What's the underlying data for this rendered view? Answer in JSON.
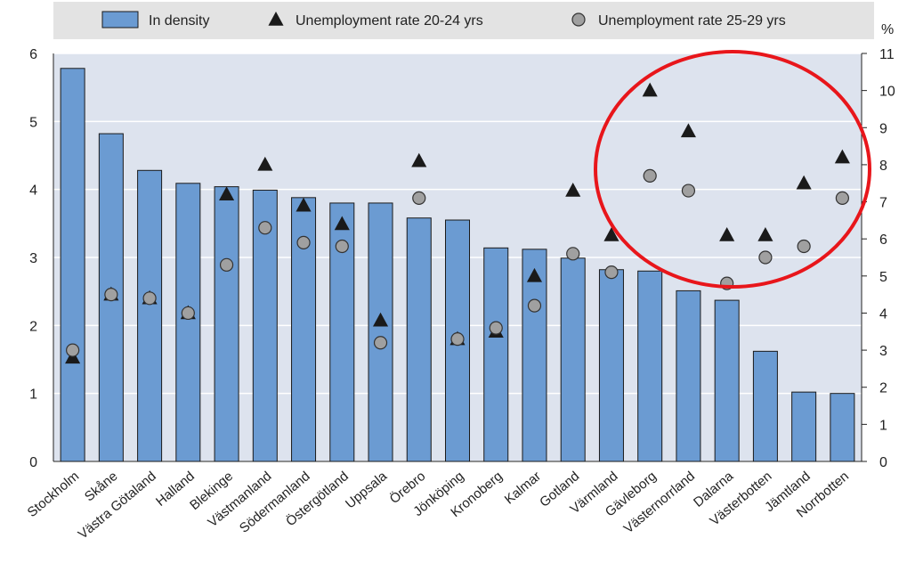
{
  "chart_data": {
    "type": "bar",
    "categories": [
      "Stockholm",
      "Skåne",
      "Västra Götaland",
      "Halland",
      "Blekinge",
      "Västmanland",
      "Södermanland",
      "Östergötland",
      "Uppsala",
      "Örebro",
      "Jönköping",
      "Kronoberg",
      "Kalmar",
      "Gotland",
      "Värmland",
      "Gävleborg",
      "Västernorrland",
      "Dalarna",
      "Västerbotten",
      "Jämtland",
      "Norrbotten"
    ],
    "series": [
      {
        "name": "In density",
        "kind": "bar",
        "axis": "left",
        "values": [
          5.78,
          4.82,
          4.28,
          4.09,
          4.04,
          3.99,
          3.88,
          3.8,
          3.8,
          3.58,
          3.55,
          3.14,
          3.12,
          2.99,
          2.82,
          2.8,
          2.51,
          2.37,
          1.62,
          1.02,
          1.0
        ]
      },
      {
        "name": "Unemployment rate 20-24 yrs",
        "kind": "triangle",
        "axis": "right",
        "values": [
          2.8,
          4.5,
          4.4,
          4.0,
          7.2,
          8.0,
          6.9,
          6.4,
          3.8,
          8.1,
          3.3,
          3.5,
          5.0,
          7.3,
          6.1,
          10.0,
          8.9,
          6.1,
          6.1,
          7.5,
          8.2
        ]
      },
      {
        "name": "Unemployment rate 25-29 yrs",
        "kind": "circle",
        "axis": "right",
        "values": [
          3.0,
          4.5,
          4.4,
          4.0,
          5.3,
          6.3,
          5.9,
          5.8,
          3.2,
          7.1,
          3.3,
          3.6,
          4.2,
          5.6,
          5.1,
          7.7,
          7.3,
          4.8,
          5.5,
          5.8,
          7.1
        ]
      }
    ],
    "y_left": {
      "min": 0,
      "max": 6,
      "ticks": [
        "0",
        "1",
        "2",
        "3",
        "4",
        "5",
        "6"
      ]
    },
    "y_right": {
      "unit": "%",
      "min": 0,
      "max": 11,
      "ticks": [
        "0",
        "1",
        "2",
        "3",
        "4",
        "5",
        "6",
        "7",
        "8",
        "9",
        "10",
        "11"
      ]
    },
    "legend_position": "top",
    "grid": true,
    "annotation": "red ellipse highlighting Gävleborg to Norrbotten"
  },
  "colors": {
    "bar_fill": "#6b9bd2",
    "bar_stroke": "#1a1a1a",
    "marker_triangle": "#1a1a1a",
    "marker_circle": "#a0a0a0",
    "plot_background": "#dde3ee",
    "grid": "#ffffff",
    "legend_background": "#e3e3e3",
    "annotation": "#e8161b"
  }
}
